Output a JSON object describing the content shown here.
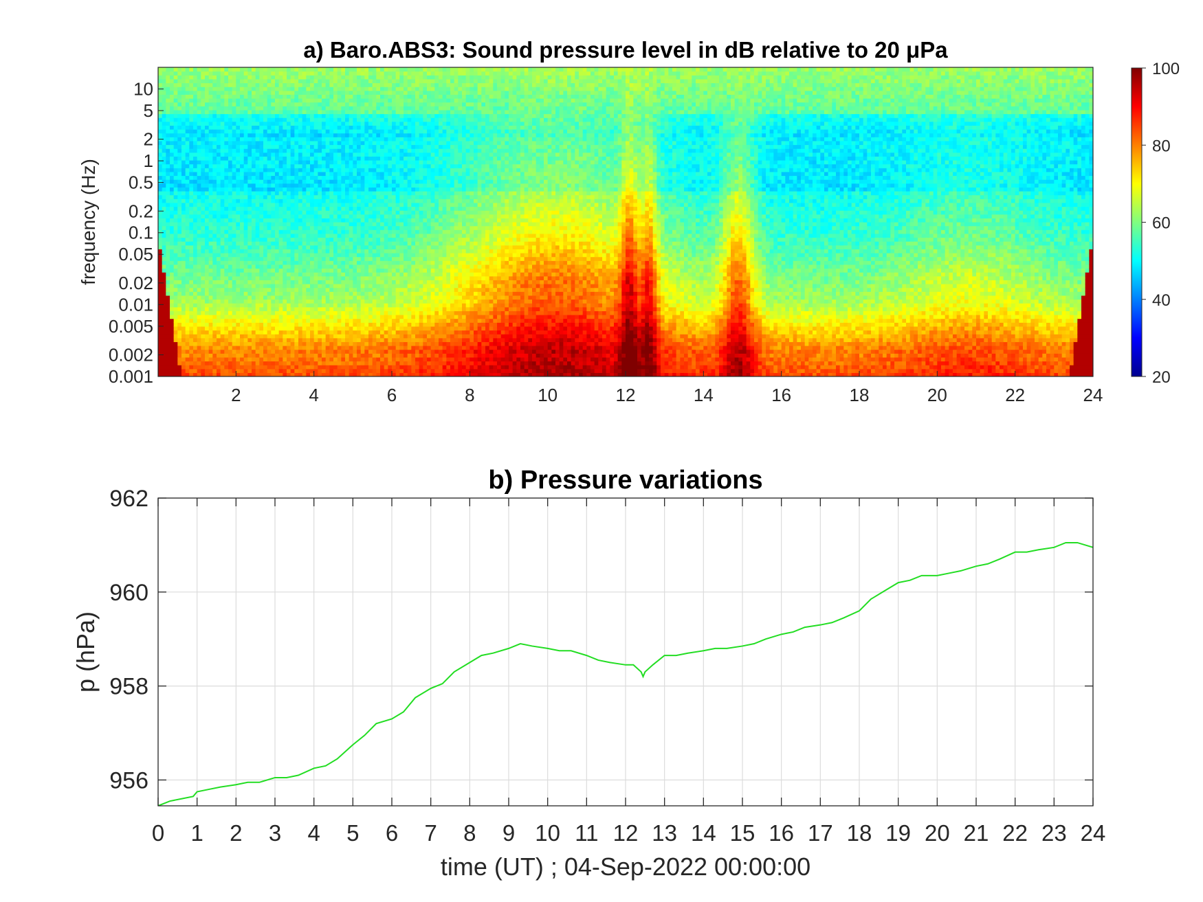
{
  "chart_data": [
    {
      "type": "heatmap",
      "title": "a) Baro.ABS3: Sound pressure level in dB relative to 20 μPa",
      "xlabel": "",
      "ylabel": "frequency (Hz)",
      "xlim": [
        0,
        24
      ],
      "ylim_hz": [
        0.001,
        20
      ],
      "y_scale": "log",
      "x_ticks": [
        "2",
        "4",
        "6",
        "8",
        "10",
        "12",
        "14",
        "16",
        "18",
        "20",
        "22",
        "24"
      ],
      "x_tick_values": [
        2,
        4,
        6,
        8,
        10,
        12,
        14,
        16,
        18,
        20,
        22,
        24
      ],
      "y_ticks": [
        "10",
        "5",
        "2",
        "1",
        "0.5",
        "0.2",
        "0.1",
        "0.05",
        "0.02",
        "0.01",
        "0.005",
        "0.002",
        "0.001"
      ],
      "y_tick_values": [
        10,
        5,
        2,
        1,
        0.5,
        0.2,
        0.1,
        0.05,
        0.02,
        0.01,
        0.005,
        0.002,
        0.001
      ],
      "colorbar": {
        "min": 20,
        "max": 100,
        "ticks": [
          "20",
          "40",
          "60",
          "80",
          "100"
        ],
        "tick_values": [
          20,
          40,
          60,
          80,
          100
        ],
        "colormap": "jet"
      },
      "grid": false,
      "activity_peaks_hours": [
        9.5,
        12.1,
        12.6,
        14.9
      ]
    },
    {
      "type": "line",
      "title": "b) Pressure variations",
      "xlabel": "time (UT) ; 04-Sep-2022 00:00:00",
      "ylabel": "p (hPa)",
      "xlim": [
        0,
        24
      ],
      "ylim": [
        955.45,
        962
      ],
      "x_ticks": [
        "0",
        "1",
        "2",
        "3",
        "4",
        "5",
        "6",
        "7",
        "8",
        "9",
        "10",
        "11",
        "12",
        "13",
        "14",
        "15",
        "16",
        "17",
        "18",
        "19",
        "20",
        "21",
        "22",
        "23",
        "24"
      ],
      "x_tick_values": [
        0,
        1,
        2,
        3,
        4,
        5,
        6,
        7,
        8,
        9,
        10,
        11,
        12,
        13,
        14,
        15,
        16,
        17,
        18,
        19,
        20,
        21,
        22,
        23,
        24
      ],
      "y_ticks": [
        "956",
        "958",
        "960",
        "962"
      ],
      "y_tick_values": [
        956,
        958,
        960,
        962
      ],
      "grid": true,
      "series": [
        {
          "color": "#22dd22",
          "x": [
            0,
            0.3,
            0.6,
            0.9,
            1.0,
            1.3,
            1.6,
            2.0,
            2.3,
            2.6,
            3.0,
            3.3,
            3.6,
            4.0,
            4.3,
            4.6,
            5.0,
            5.3,
            5.6,
            6.0,
            6.3,
            6.6,
            7.0,
            7.3,
            7.6,
            8.0,
            8.3,
            8.6,
            9.0,
            9.3,
            9.6,
            10.0,
            10.3,
            10.6,
            11.0,
            11.3,
            11.6,
            12.0,
            12.2,
            12.4,
            12.45,
            12.5,
            12.7,
            13.0,
            13.3,
            13.6,
            14.0,
            14.3,
            14.6,
            15.0,
            15.3,
            15.6,
            16.0,
            16.3,
            16.6,
            17.0,
            17.3,
            17.6,
            18.0,
            18.3,
            18.6,
            19.0,
            19.3,
            19.6,
            20.0,
            20.3,
            20.6,
            21.0,
            21.3,
            21.6,
            22.0,
            22.3,
            22.6,
            23.0,
            23.3,
            23.6,
            24.0
          ],
          "y": [
            955.45,
            955.55,
            955.6,
            955.65,
            955.75,
            955.8,
            955.85,
            955.9,
            955.95,
            955.95,
            956.05,
            956.05,
            956.1,
            956.25,
            956.3,
            956.45,
            956.75,
            956.95,
            957.2,
            957.3,
            957.45,
            957.75,
            957.95,
            958.05,
            958.3,
            958.5,
            958.65,
            958.7,
            958.8,
            958.9,
            958.85,
            958.8,
            958.75,
            958.75,
            958.65,
            958.55,
            958.5,
            958.45,
            958.45,
            958.3,
            958.2,
            958.3,
            958.45,
            958.65,
            958.65,
            958.7,
            958.75,
            958.8,
            958.8,
            958.85,
            958.9,
            959.0,
            959.1,
            959.15,
            959.25,
            959.3,
            959.35,
            959.45,
            959.6,
            959.85,
            960.0,
            960.2,
            960.25,
            960.35,
            960.35,
            960.4,
            960.45,
            960.55,
            960.6,
            960.7,
            960.85,
            960.85,
            960.9,
            960.95,
            961.05,
            961.05,
            960.95
          ]
        }
      ]
    }
  ]
}
